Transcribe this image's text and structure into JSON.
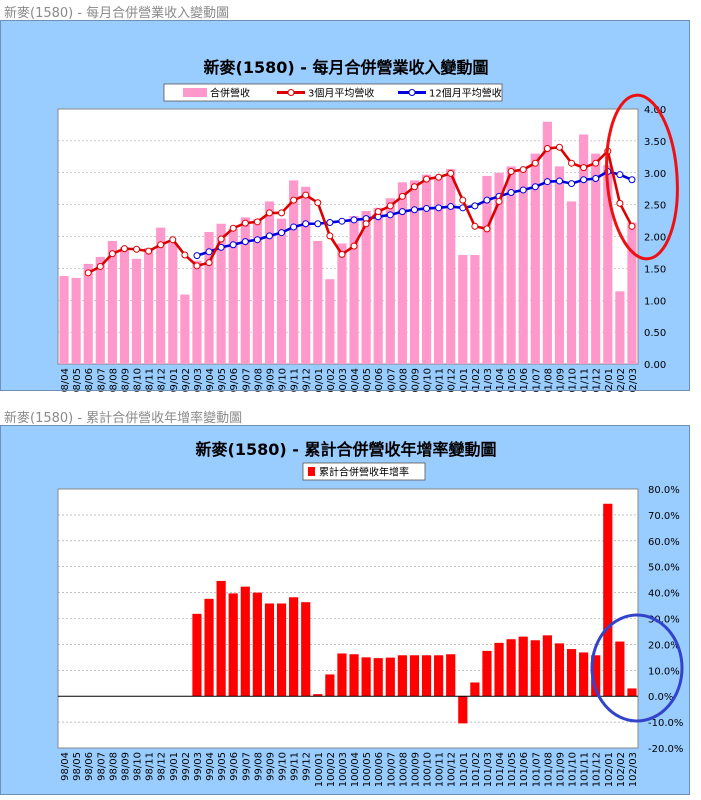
{
  "chart1": {
    "caption": "新麥(1580)  - 每月合併營業收入變動圖",
    "title": "新麥(1580)  - 每月合併營業收入變動圖",
    "legend": [
      "合併營收",
      "3個月平均營收",
      "12個月平均營收"
    ],
    "y_ticks": [
      "0.00",
      "0.50",
      "1.00",
      "1.50",
      "2.00",
      "2.50",
      "3.00",
      "3.50",
      "4.00"
    ]
  },
  "chart2": {
    "caption": "新麥(1580)  - 累計合併營收年增率變動圖",
    "title": "新麥(1580)  - 累計合併營收年增率變動圖",
    "legend": [
      "累計合併營收年增率"
    ],
    "y_ticks": [
      "-20.0%",
      "-10.0%",
      "0.0%",
      "10.0%",
      "20.0%",
      "30.0%",
      "40.0%",
      "50.0%",
      "60.0%",
      "70.0%",
      "80.0%"
    ]
  },
  "colors": {
    "revenue_bar": "#ff99cc",
    "ma3": "#dd0000",
    "ma12": "#0000dd",
    "growth_bar": "#ff0000",
    "panel_bg": "#99ccff",
    "annotation_red": "#ee1111",
    "annotation_blue": "#3344cc"
  },
  "chart_data": [
    {
      "type": "bar",
      "title": "新麥(1580)  - 每月合併營業收入變動圖",
      "categories": [
        "98/04",
        "98/05",
        "98/06",
        "98/07",
        "98/08",
        "98/09",
        "98/10",
        "98/11",
        "98/12",
        "99/01",
        "99/02",
        "99/03",
        "99/04",
        "99/05",
        "99/06",
        "99/07",
        "99/08",
        "99/09",
        "99/10",
        "99/11",
        "99/12",
        "100/01",
        "100/02",
        "100/03",
        "100/04",
        "100/05",
        "100/06",
        "100/07",
        "100/08",
        "100/09",
        "100/10",
        "100/11",
        "100/12",
        "101/01",
        "101/02",
        "101/03",
        "101/04",
        "101/05",
        "101/06",
        "101/07",
        "101/08",
        "101/09",
        "101/10",
        "101/11",
        "101/12",
        "102/01",
        "102/02",
        "102/03"
      ],
      "ylim": [
        0,
        4
      ],
      "series": [
        {
          "name": "合併營收",
          "kind": "bar",
          "values": [
            1.38,
            1.35,
            1.57,
            1.68,
            1.93,
            1.83,
            1.65,
            1.82,
            2.14,
            1.9,
            1.09,
            1.62,
            2.07,
            2.2,
            2.12,
            2.3,
            2.27,
            2.55,
            2.28,
            2.88,
            2.78,
            1.93,
            1.33,
            1.89,
            2.32,
            2.4,
            2.45,
            2.6,
            2.85,
            2.88,
            2.97,
            2.95,
            3.06,
            1.71,
            1.71,
            2.95,
            3.0,
            3.1,
            3.05,
            3.3,
            3.8,
            3.1,
            2.55,
            3.6,
            3.3,
            3.12,
            1.14,
            2.22
          ]
        },
        {
          "name": "3個月平均營收",
          "kind": "line",
          "values": [
            null,
            null,
            1.43,
            1.53,
            1.73,
            1.81,
            1.8,
            1.77,
            1.87,
            1.95,
            1.71,
            1.54,
            1.59,
            1.96,
            2.13,
            2.21,
            2.23,
            2.37,
            2.37,
            2.57,
            2.65,
            2.53,
            2.01,
            1.72,
            1.85,
            2.2,
            2.39,
            2.48,
            2.63,
            2.78,
            2.9,
            2.93,
            2.99,
            2.57,
            2.16,
            2.12,
            2.55,
            3.02,
            3.05,
            3.15,
            3.38,
            3.4,
            3.15,
            3.08,
            3.15,
            3.34,
            2.52,
            2.16
          ]
        },
        {
          "name": "12個月平均營收",
          "kind": "line",
          "values": [
            null,
            null,
            null,
            null,
            null,
            null,
            null,
            null,
            null,
            null,
            null,
            1.7,
            1.76,
            1.83,
            1.87,
            1.92,
            1.95,
            2.01,
            2.06,
            2.15,
            2.2,
            2.2,
            2.22,
            2.24,
            2.26,
            2.28,
            2.31,
            2.34,
            2.39,
            2.42,
            2.44,
            2.45,
            2.47,
            2.45,
            2.48,
            2.57,
            2.63,
            2.69,
            2.73,
            2.78,
            2.86,
            2.87,
            2.83,
            2.89,
            2.91,
            3.02,
            2.97,
            2.89
          ]
        }
      ]
    },
    {
      "type": "bar",
      "title": "新麥(1580)  - 累計合併營收年增率變動圖",
      "categories": [
        "98/04",
        "98/05",
        "98/06",
        "98/07",
        "98/08",
        "98/09",
        "98/10",
        "98/11",
        "98/12",
        "99/01",
        "99/02",
        "99/03",
        "99/04",
        "99/05",
        "99/06",
        "99/07",
        "99/08",
        "99/09",
        "99/10",
        "99/11",
        "99/12",
        "100/01",
        "100/02",
        "100/03",
        "100/04",
        "100/05",
        "100/06",
        "100/07",
        "100/08",
        "100/09",
        "100/10",
        "100/11",
        "100/12",
        "101/01",
        "101/02",
        "101/03",
        "101/04",
        "101/05",
        "101/06",
        "101/07",
        "101/08",
        "101/09",
        "101/10",
        "101/11",
        "101/12",
        "102/01",
        "102/02",
        "102/03"
      ],
      "ylim": [
        -20,
        80
      ],
      "series": [
        {
          "name": "累計合併營收年增率",
          "values": [
            null,
            null,
            null,
            null,
            null,
            null,
            null,
            null,
            null,
            null,
            null,
            31.8,
            37.6,
            44.5,
            39.7,
            42.3,
            40.0,
            35.8,
            35.8,
            38.2,
            36.3,
            0.8,
            8.4,
            16.5,
            16.2,
            15.0,
            14.7,
            14.9,
            15.8,
            15.8,
            15.8,
            15.8,
            16.2,
            -10.5,
            5.3,
            17.5,
            20.6,
            22.0,
            23.0,
            21.6,
            23.5,
            20.4,
            18.2,
            16.9,
            15.8,
            74.3,
            21.1,
            3.0
          ]
        }
      ]
    }
  ]
}
